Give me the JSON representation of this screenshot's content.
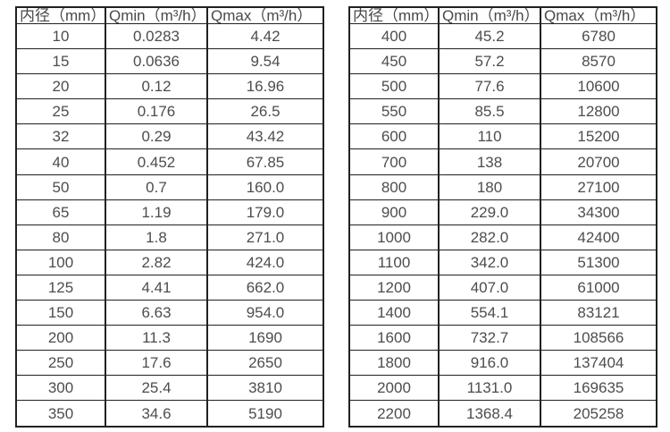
{
  "headers": [
    "内径（mm）",
    "Qmin（m³/h）",
    "Qmax（m³/h）"
  ],
  "tables": [
    {
      "name": "small-diameter-flow-table",
      "rows": [
        [
          "10",
          "0.0283",
          "4.42"
        ],
        [
          "15",
          "0.0636",
          "9.54"
        ],
        [
          "20",
          "0.12",
          "16.96"
        ],
        [
          "25",
          "0.176",
          "26.5"
        ],
        [
          "32",
          "0.29",
          "43.42"
        ],
        [
          "40",
          "0.452",
          "67.85"
        ],
        [
          "50",
          "0.7",
          "160.0"
        ],
        [
          "65",
          "1.19",
          "179.0"
        ],
        [
          "80",
          "1.8",
          "271.0"
        ],
        [
          "100",
          "2.82",
          "424.0"
        ],
        [
          "125",
          "4.41",
          "662.0"
        ],
        [
          "150",
          "6.63",
          "954.0"
        ],
        [
          "200",
          "11.3",
          "1690"
        ],
        [
          "250",
          "17.6",
          "2650"
        ],
        [
          "300",
          "25.4",
          "3810"
        ],
        [
          "350",
          "34.6",
          "5190"
        ]
      ]
    },
    {
      "name": "large-diameter-flow-table",
      "rows": [
        [
          "400",
          "45.2",
          "6780"
        ],
        [
          "450",
          "57.2",
          "8570"
        ],
        [
          "500",
          "77.6",
          "10600"
        ],
        [
          "550",
          "85.5",
          "12800"
        ],
        [
          "600",
          "110",
          "15200"
        ],
        [
          "700",
          "138",
          "20700"
        ],
        [
          "800",
          "180",
          "27100"
        ],
        [
          "900",
          "229.0",
          "34300"
        ],
        [
          "1000",
          "282.0",
          "42400"
        ],
        [
          "1100",
          "342.0",
          "51300"
        ],
        [
          "1200",
          "407.0",
          "61000"
        ],
        [
          "1400",
          "554.1",
          "83121"
        ],
        [
          "1600",
          "732.7",
          "108566"
        ],
        [
          "1800",
          "916.0",
          "137404"
        ],
        [
          "2000",
          "1131.0",
          "169635"
        ],
        [
          "2200",
          "1368.4",
          "205258"
        ]
      ]
    }
  ],
  "colors": {
    "border": "#212121",
    "text": "#4d4d4d",
    "background": "#ffffff"
  }
}
